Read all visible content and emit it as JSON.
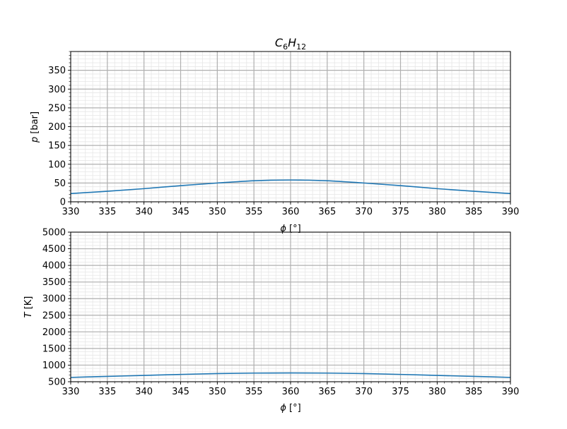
{
  "chart_data": [
    {
      "type": "line",
      "title_main": "C",
      "title_sub1": "6",
      "title_mid": "H",
      "title_sub2": "12",
      "xlabel_sym": "ϕ",
      "xlabel_unit": " [°]",
      "ylabel_sym": "p",
      "ylabel_unit": " [bar]",
      "xlim": [
        330,
        390
      ],
      "ylim": [
        0,
        400
      ],
      "xticks": [
        330,
        335,
        340,
        345,
        350,
        355,
        360,
        365,
        370,
        375,
        380,
        385,
        390
      ],
      "yticks": [
        0,
        50,
        100,
        150,
        200,
        250,
        300,
        350
      ],
      "grid": true,
      "series": [
        {
          "color": "#1f77b4",
          "x": [
            330,
            335,
            340,
            345,
            350,
            355,
            360,
            365,
            370,
            375,
            380,
            385,
            390
          ],
          "y": [
            22,
            28,
            35,
            43,
            50,
            56,
            58,
            56,
            50,
            43,
            35,
            28,
            22
          ]
        }
      ]
    },
    {
      "type": "line",
      "xlabel_sym": "ϕ",
      "xlabel_unit": " [°]",
      "ylabel_sym": "T",
      "ylabel_unit": " [K]",
      "xlim": [
        330,
        390
      ],
      "ylim": [
        500,
        5000
      ],
      "xticks": [
        330,
        335,
        340,
        345,
        350,
        355,
        360,
        365,
        370,
        375,
        380,
        385,
        390
      ],
      "yticks": [
        500,
        1000,
        1500,
        2000,
        2500,
        3000,
        3500,
        4000,
        4500,
        5000
      ],
      "grid": true,
      "series": [
        {
          "color": "#1f77b4",
          "x": [
            330,
            335,
            340,
            345,
            350,
            355,
            360,
            365,
            370,
            375,
            380,
            385,
            390
          ],
          "y": [
            630,
            660,
            690,
            720,
            745,
            760,
            765,
            760,
            745,
            720,
            690,
            660,
            630
          ]
        }
      ]
    }
  ]
}
